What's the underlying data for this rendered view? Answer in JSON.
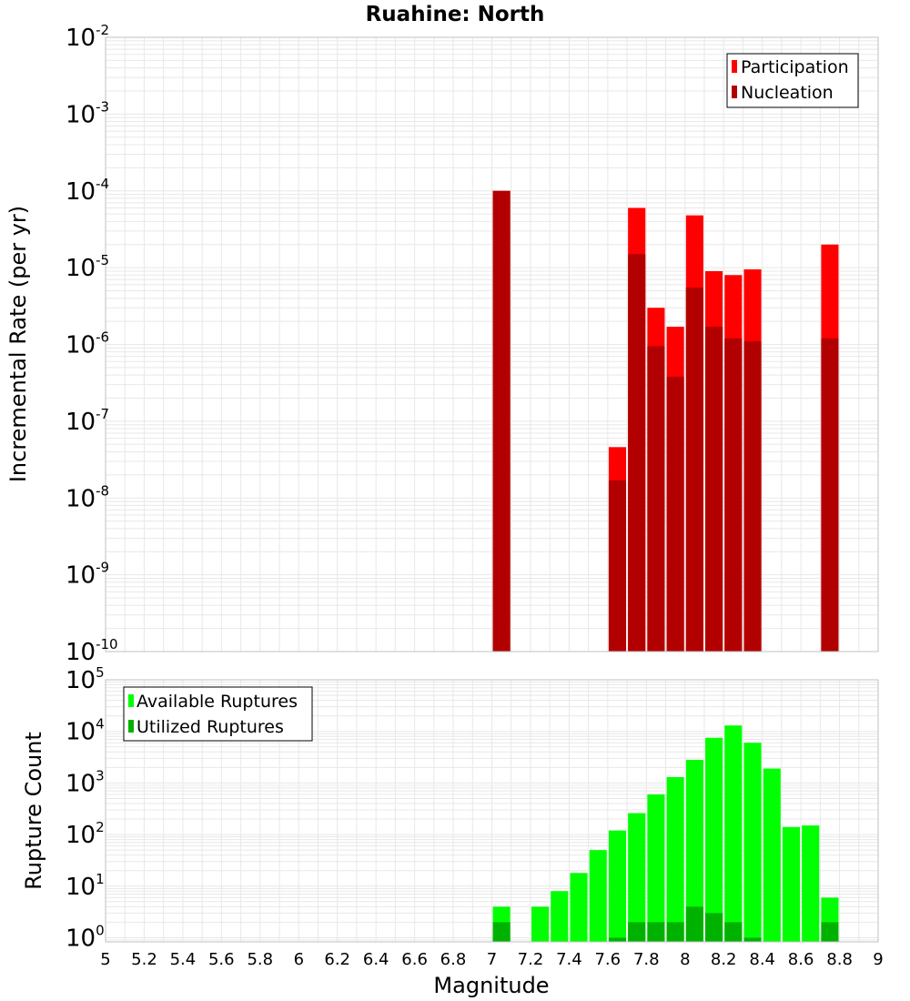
{
  "chart_data": {
    "title": "Ruahine: North",
    "xlabel": "Magnitude",
    "xlim": [
      5,
      9
    ],
    "x_ticks": [
      "5",
      "5.2",
      "5.4",
      "5.6",
      "5.8",
      "6",
      "6.2",
      "6.4",
      "6.6",
      "6.8",
      "7",
      "7.2",
      "7.4",
      "7.6",
      "7.8",
      "8",
      "8.2",
      "8.4",
      "8.6",
      "8.8",
      "9"
    ],
    "bin_width": 0.1,
    "colors": {
      "participation": "#ff0000",
      "nucleation": "#b20000",
      "available": "#00ff00",
      "utilized": "#00b200",
      "grid": "#e8e8e8",
      "frame": "#c0c0c0"
    },
    "panels": [
      {
        "type": "bar",
        "yscale": "log",
        "ylabel": "Incremental Rate (per yr)",
        "ylim_exp": [
          -10,
          -2
        ],
        "ytick_base": "10",
        "ytick_exponents": [
          "-2",
          "-3",
          "-4",
          "-5",
          "-6",
          "-7",
          "-8",
          "-9",
          "-10"
        ],
        "legend": [
          "Participation",
          "Nucleation"
        ],
        "legend_position": "top-right",
        "series": [
          {
            "name": "Participation",
            "x": [
              7.05,
              7.65,
              7.75,
              7.85,
              7.95,
              8.05,
              8.15,
              8.25,
              8.35,
              8.75
            ],
            "values": [
              0.0001,
              4.6e-08,
              6e-05,
              3e-06,
              1.7e-06,
              4.8e-05,
              9e-06,
              8e-06,
              9.5e-06,
              2e-05
            ]
          },
          {
            "name": "Nucleation",
            "x": [
              7.05,
              7.65,
              7.75,
              7.85,
              7.95,
              8.05,
              8.15,
              8.25,
              8.35,
              8.75
            ],
            "values": [
              0.0001,
              1.7e-08,
              1.5e-05,
              9.5e-07,
              3.8e-07,
              5.5e-06,
              1.7e-06,
              1.2e-06,
              1.1e-06,
              1.2e-06
            ]
          }
        ]
      },
      {
        "type": "bar",
        "yscale": "log",
        "ylabel": "Rupture Count",
        "ylim_exp": [
          -0.08,
          5
        ],
        "ytick_base": "10",
        "ytick_exponents": [
          "5",
          "4",
          "3",
          "2",
          "1",
          "0"
        ],
        "legend": [
          "Available Ruptures",
          "Utilized Ruptures"
        ],
        "legend_position": "top-left",
        "series": [
          {
            "name": "Available Ruptures",
            "x": [
              7.05,
              7.25,
              7.35,
              7.45,
              7.55,
              7.65,
              7.75,
              7.85,
              7.95,
              8.05,
              8.15,
              8.25,
              8.35,
              8.45,
              8.55,
              8.65,
              8.75
            ],
            "values": [
              4,
              4,
              8,
              18,
              50,
              120,
              260,
              600,
              1300,
              2800,
              7500,
              13000,
              6000,
              1900,
              140,
              150,
              6
            ]
          },
          {
            "name": "Utilized Ruptures",
            "x": [
              7.05,
              7.65,
              7.75,
              7.85,
              7.95,
              8.05,
              8.15,
              8.25,
              8.35,
              8.75
            ],
            "values": [
              2,
              1,
              2,
              2,
              2,
              4,
              3,
              2,
              1,
              2
            ]
          }
        ]
      }
    ]
  }
}
